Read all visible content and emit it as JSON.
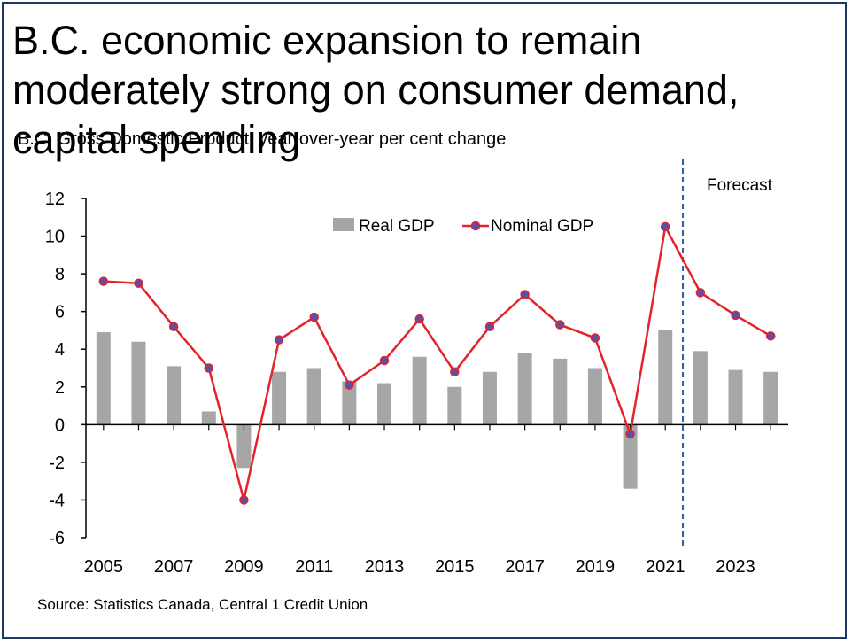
{
  "title": "B.C. economic expansion to remain moderately strong on consumer demand, capital spending",
  "subtitle": "B.C. Gross Domestic Product, year-over-year per cent change",
  "source": "Source: Statistics Canada, Central 1 Credit Union",
  "forecast_label": "Forecast",
  "colors": {
    "real_gdp": "#a6a6a6",
    "nominal_gdp": "#e3232c",
    "marker_fill": "#5b4fa8",
    "forecast_line": "#2e5fa3",
    "frame": "#1f3864"
  },
  "chart_data": {
    "type": "bar",
    "x": [
      2005,
      2006,
      2007,
      2008,
      2009,
      2010,
      2011,
      2012,
      2013,
      2014,
      2015,
      2016,
      2017,
      2018,
      2019,
      2020,
      2021,
      2022,
      2023,
      2024
    ],
    "x_tick_labels": [
      "2005",
      "2007",
      "2009",
      "2011",
      "2013",
      "2015",
      "2017",
      "2019",
      "2021",
      "2023"
    ],
    "y_tick_labels": [
      "12",
      "10",
      "8",
      "6",
      "4",
      "2",
      "0",
      "-2",
      "-4",
      "-6"
    ],
    "ylim": [
      -6,
      12
    ],
    "series": [
      {
        "name": "Real GDP",
        "type": "bar",
        "values": [
          4.9,
          4.4,
          3.1,
          0.7,
          -2.3,
          2.8,
          3.0,
          2.3,
          2.2,
          3.6,
          2.0,
          2.8,
          3.8,
          3.5,
          3.0,
          -3.4,
          5.0,
          3.9,
          2.9,
          2.8
        ]
      },
      {
        "name": "Nominal GDP",
        "type": "line",
        "values": [
          7.6,
          7.5,
          5.2,
          3.0,
          -4.0,
          4.5,
          5.7,
          2.1,
          3.4,
          5.6,
          2.8,
          5.2,
          6.9,
          5.3,
          4.6,
          -0.5,
          10.5,
          7.0,
          5.8,
          4.7
        ]
      }
    ],
    "forecast_starts_after": 2021,
    "legend_position": "top",
    "grid": false
  }
}
